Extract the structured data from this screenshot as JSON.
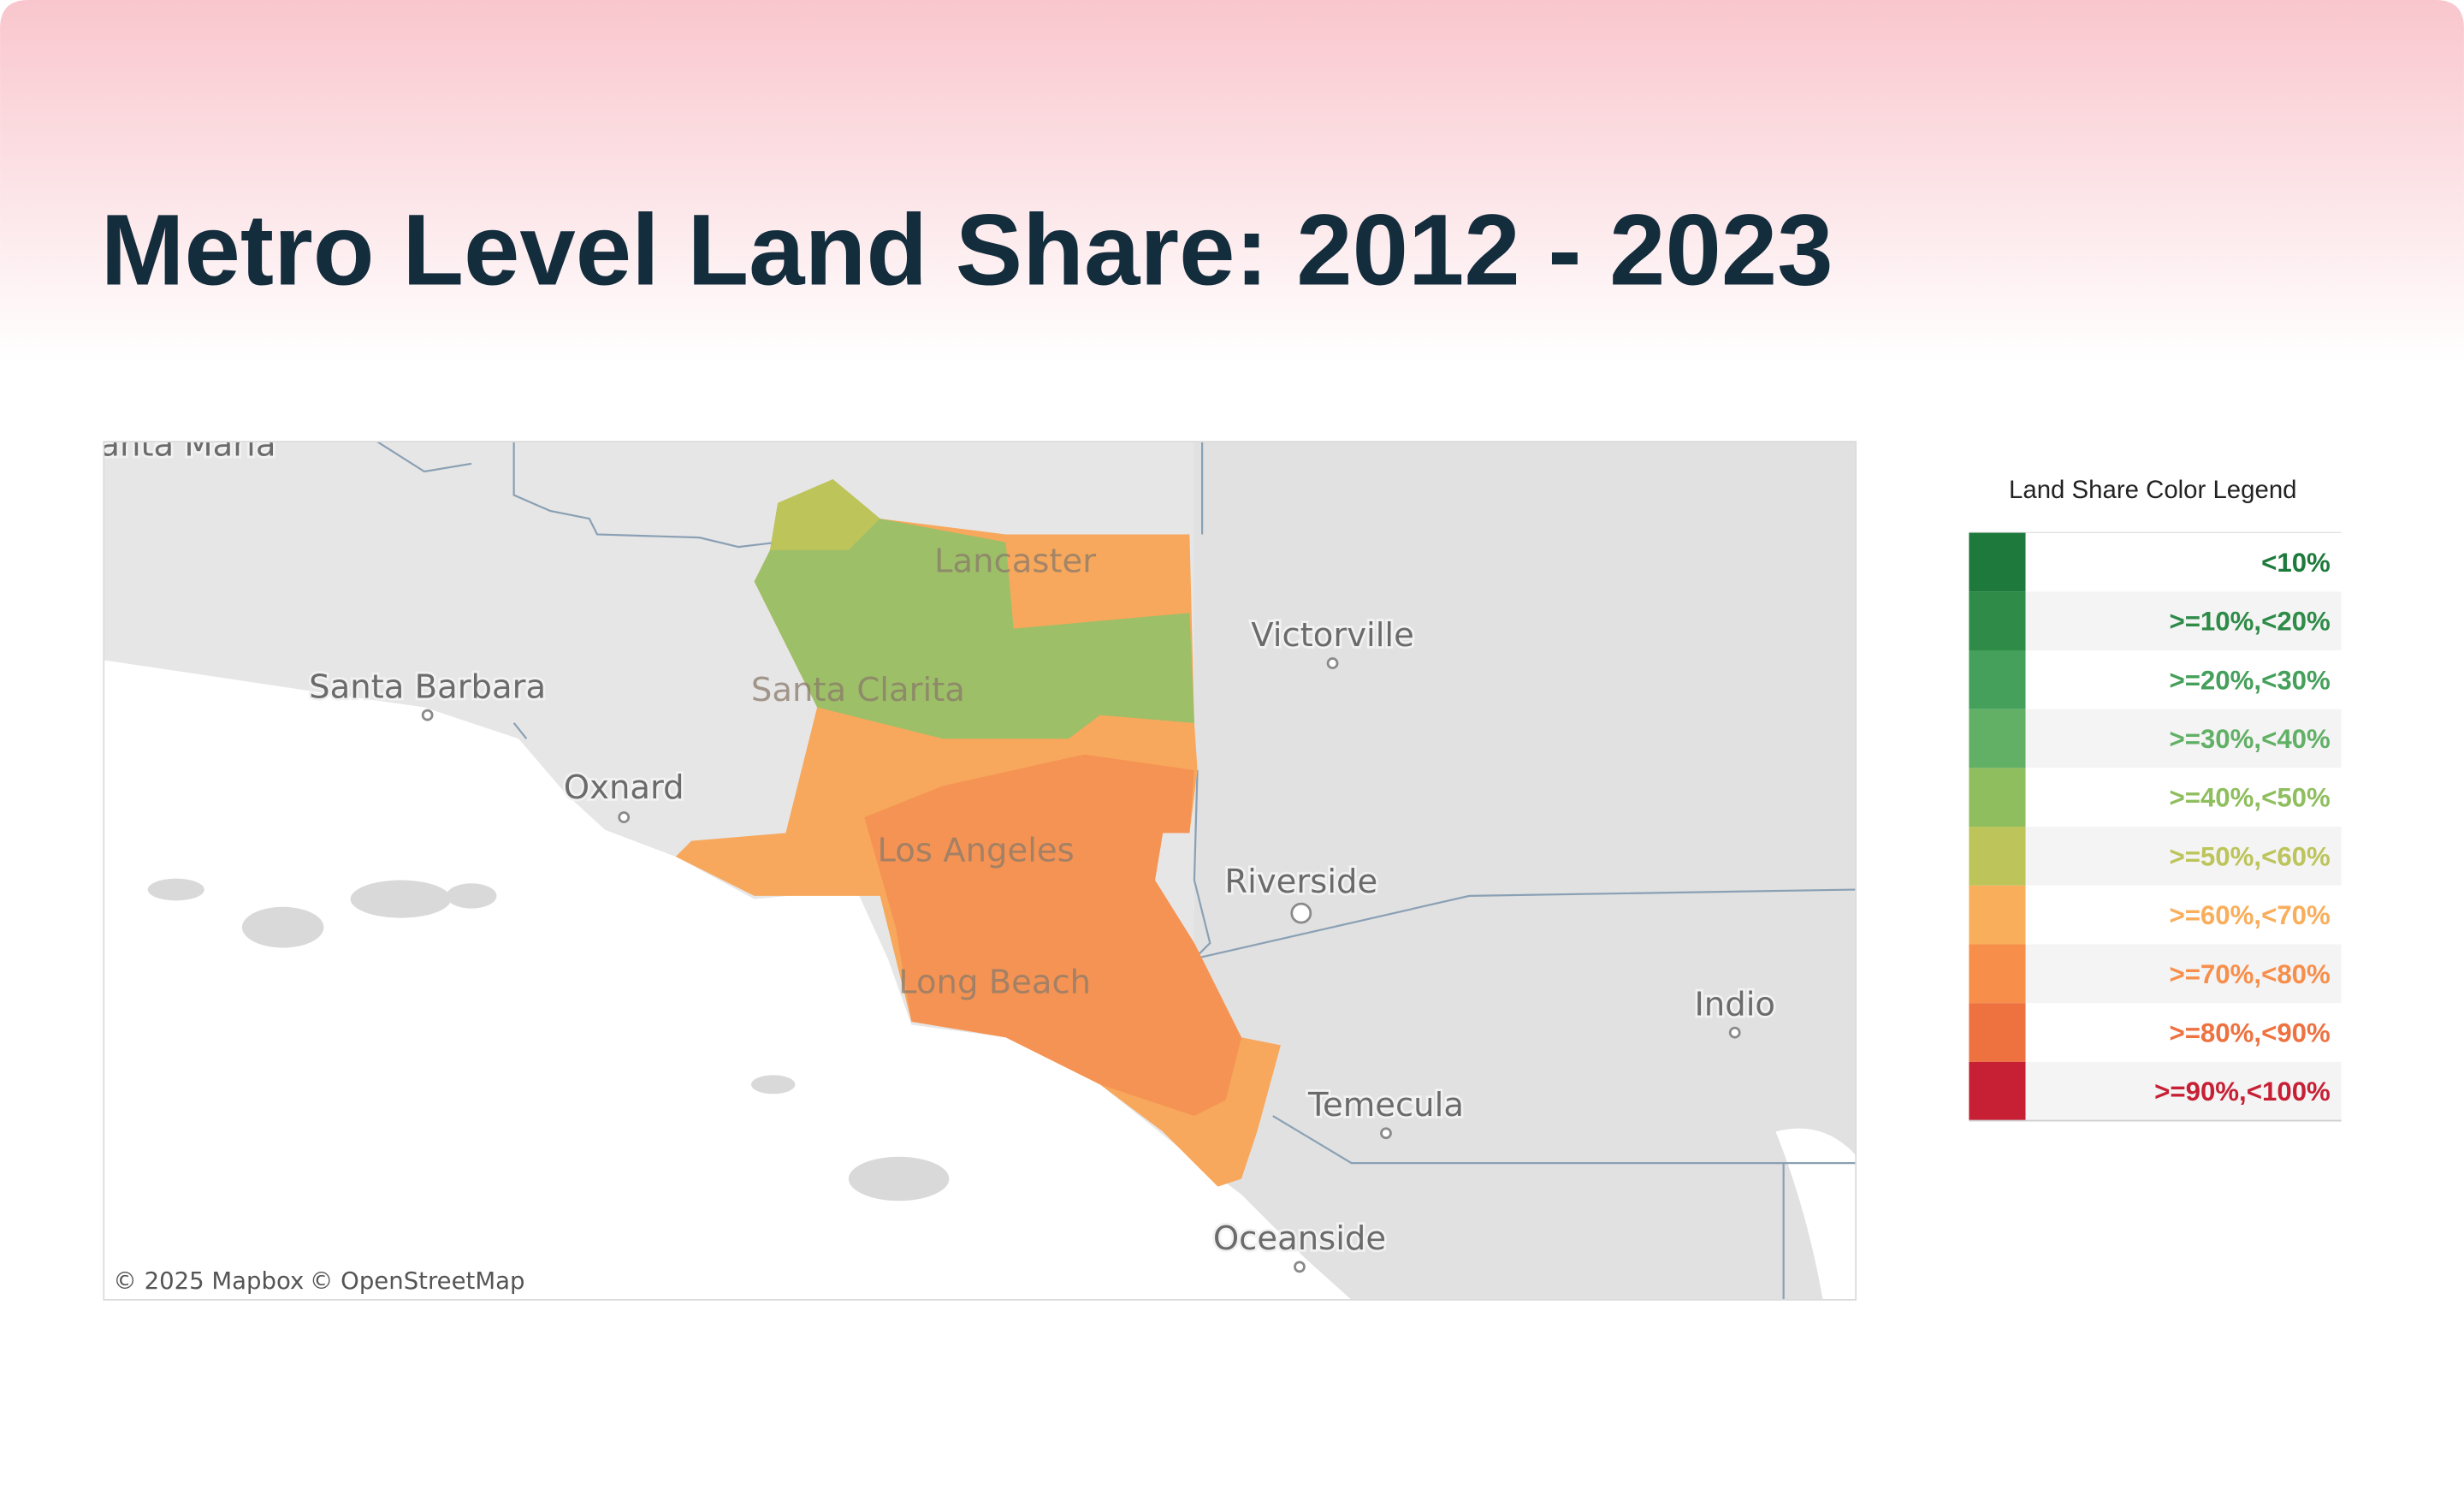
{
  "header": {
    "title": "Metro Level Land Share: 2012 - 2023"
  },
  "map": {
    "labels": [
      "Santa Maria",
      "Santa Barbara",
      "Oxnard",
      "Lancaster",
      "Santa Clarita",
      "Victorville",
      "Los Angeles",
      "Riverside",
      "Long Beach",
      "Indio",
      "Temecula",
      "Oceanside"
    ],
    "attribution": [
      "© 2025 Mapbox",
      "© OpenStreetMap"
    ]
  },
  "legend": {
    "title": "Land Share Color Legend",
    "items": [
      {
        "label": "<10%",
        "color": "#1e7a3c"
      },
      {
        "label": ">=10%,<20%",
        "color": "#2e8b48"
      },
      {
        "label": ">=20%,<30%",
        "color": "#44a05a"
      },
      {
        "label": ">=30%,<40%",
        "color": "#62b066"
      },
      {
        "label": ">=40%,<50%",
        "color": "#8fbe5e"
      },
      {
        "label": ">=50%,<60%",
        "color": "#bcc45a"
      },
      {
        "label": ">=60%,<70%",
        "color": "#f9ae5b"
      },
      {
        "label": ">=70%,<80%",
        "color": "#f78f4b"
      },
      {
        "label": ">=80%,<90%",
        "color": "#ee7140"
      },
      {
        "label": ">=90%,<100%",
        "color": "#c72035"
      }
    ]
  }
}
